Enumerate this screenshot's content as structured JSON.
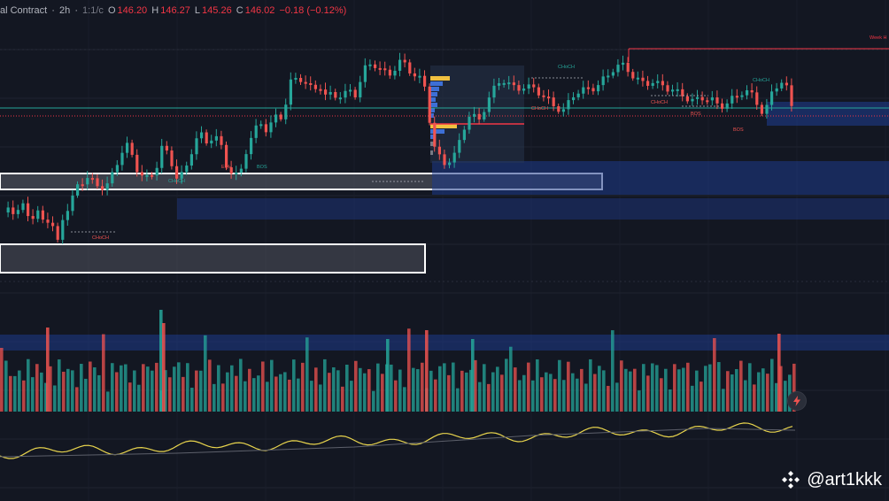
{
  "legend": {
    "symbol": "al Contract",
    "sep1": "·",
    "interval": "2h",
    "sep2": "·",
    "exchange": "1:1/c",
    "o_label": "O",
    "o_val": "146.20",
    "h_label": "H",
    "h_val": "146.27",
    "l_label": "L",
    "l_val": "145.26",
    "c_label": "C",
    "c_val": "146.02",
    "change": "−0.18 (−0.12%)"
  },
  "watermark": {
    "handle": "@art1kkk",
    "icon": "binance-logo-icon"
  },
  "annotations": {
    "weekly_label": "Week H",
    "choch": "CHoCH",
    "bos": "BOS",
    "eqh": "EQH"
  },
  "colors": {
    "background": "#131722",
    "up": "#26a69a",
    "down": "#ef5350",
    "zone_blue": "#1e3a8a",
    "zone_gray": "#434651",
    "oscillator": "#e8d44d"
  },
  "chart_data": {
    "type": "candlestick",
    "panes": [
      "price",
      "volume",
      "oscillator"
    ],
    "last_candle": {
      "open": 146.2,
      "high": 146.27,
      "low": 145.26,
      "close": 146.02,
      "change": -0.18,
      "change_pct": -0.12
    },
    "has_volume": true,
    "has_oscillator": true
  }
}
